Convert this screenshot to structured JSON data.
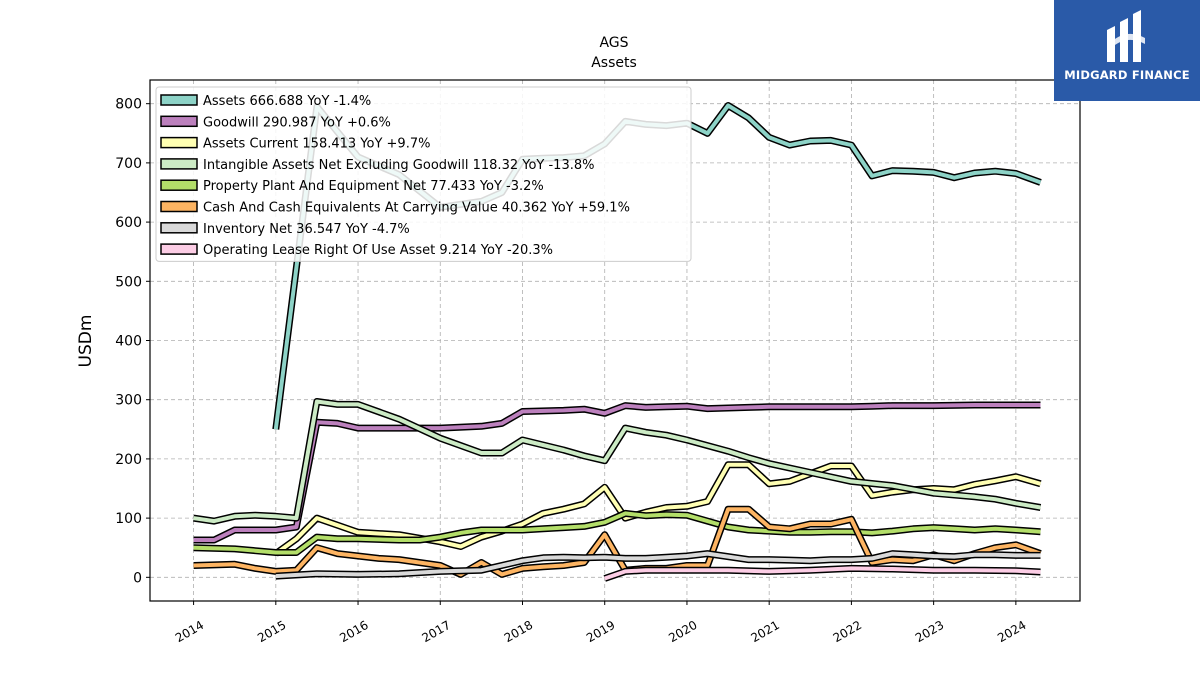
{
  "chart_data": {
    "type": "line",
    "title": "AGS",
    "subtitle": "Assets",
    "ylabel": "USDm",
    "xlabel": "",
    "xlim": [
      2013.47,
      2024.78
    ],
    "ylim": [
      -40,
      840
    ],
    "grid": true,
    "legend_position": "top-left",
    "x_ticks": [
      2014,
      2015,
      2016,
      2017,
      2018,
      2019,
      2020,
      2021,
      2022,
      2023,
      2024
    ],
    "y_ticks": [
      0,
      100,
      200,
      300,
      400,
      500,
      600,
      700,
      800
    ],
    "series": [
      {
        "name": "Assets",
        "legend_label": "Assets  666.688 YoY -1.4%",
        "color": "#8dd3c7",
        "points": [
          [
            2015.0,
            250
          ],
          [
            2015.5,
            795
          ],
          [
            2016.0,
            710
          ],
          [
            2016.5,
            680
          ],
          [
            2017.0,
            625
          ],
          [
            2017.5,
            635
          ],
          [
            2017.75,
            650
          ],
          [
            2018.0,
            706
          ],
          [
            2018.25,
            708
          ],
          [
            2018.5,
            709
          ],
          [
            2018.75,
            712
          ],
          [
            2019.0,
            732
          ],
          [
            2019.25,
            770
          ],
          [
            2019.5,
            765
          ],
          [
            2019.75,
            763
          ],
          [
            2020.0,
            767
          ],
          [
            2020.25,
            750
          ],
          [
            2020.5,
            797
          ],
          [
            2020.75,
            776
          ],
          [
            2021.0,
            743
          ],
          [
            2021.25,
            730
          ],
          [
            2021.5,
            737
          ],
          [
            2021.75,
            738
          ],
          [
            2022.0,
            730
          ],
          [
            2022.25,
            678
          ],
          [
            2022.5,
            687
          ],
          [
            2022.75,
            686
          ],
          [
            2023.0,
            684
          ],
          [
            2023.25,
            675
          ],
          [
            2023.5,
            683
          ],
          [
            2023.75,
            686
          ],
          [
            2024.0,
            682
          ],
          [
            2024.3,
            667
          ]
        ]
      },
      {
        "name": "Goodwill",
        "legend_label": "Goodwill  290.987 YoY +0.6%",
        "color": "#bc80bd",
        "points": [
          [
            2014.0,
            63
          ],
          [
            2014.25,
            63
          ],
          [
            2014.5,
            80
          ],
          [
            2014.75,
            80
          ],
          [
            2015.0,
            80
          ],
          [
            2015.25,
            85
          ],
          [
            2015.5,
            262
          ],
          [
            2015.75,
            260
          ],
          [
            2016.0,
            252
          ],
          [
            2016.5,
            252
          ],
          [
            2017.0,
            252
          ],
          [
            2017.5,
            255
          ],
          [
            2017.75,
            260
          ],
          [
            2018.0,
            280
          ],
          [
            2018.5,
            282
          ],
          [
            2018.75,
            284
          ],
          [
            2019.0,
            277
          ],
          [
            2019.25,
            290
          ],
          [
            2019.5,
            287
          ],
          [
            2019.75,
            288
          ],
          [
            2020.0,
            289
          ],
          [
            2020.25,
            285
          ],
          [
            2020.75,
            287
          ],
          [
            2021.0,
            288
          ],
          [
            2021.5,
            288
          ],
          [
            2022.0,
            288
          ],
          [
            2022.25,
            289
          ],
          [
            2022.5,
            290
          ],
          [
            2023.0,
            290
          ],
          [
            2023.5,
            291
          ],
          [
            2024.0,
            291
          ],
          [
            2024.3,
            291
          ]
        ]
      },
      {
        "name": "Assets Current",
        "legend_label": "Assets Current  158.413 YoY +9.7%",
        "color": "#ffffb3",
        "points": [
          [
            2015.0,
            40
          ],
          [
            2015.25,
            65
          ],
          [
            2015.5,
            100
          ],
          [
            2015.75,
            88
          ],
          [
            2016.0,
            76
          ],
          [
            2016.5,
            72
          ],
          [
            2017.0,
            60
          ],
          [
            2017.25,
            52
          ],
          [
            2017.5,
            68
          ],
          [
            2017.75,
            78
          ],
          [
            2018.0,
            90
          ],
          [
            2018.25,
            108
          ],
          [
            2018.5,
            115
          ],
          [
            2018.75,
            124
          ],
          [
            2019.0,
            152
          ],
          [
            2019.25,
            100
          ],
          [
            2019.5,
            110
          ],
          [
            2019.75,
            118
          ],
          [
            2020.0,
            120
          ],
          [
            2020.25,
            128
          ],
          [
            2020.5,
            190
          ],
          [
            2020.75,
            190
          ],
          [
            2021.0,
            158
          ],
          [
            2021.25,
            162
          ],
          [
            2021.5,
            175
          ],
          [
            2021.75,
            188
          ],
          [
            2022.0,
            188
          ],
          [
            2022.25,
            138
          ],
          [
            2022.5,
            144
          ],
          [
            2022.75,
            148
          ],
          [
            2023.0,
            150
          ],
          [
            2023.25,
            148
          ],
          [
            2023.5,
            157
          ],
          [
            2023.75,
            163
          ],
          [
            2024.0,
            170
          ],
          [
            2024.3,
            158
          ]
        ]
      },
      {
        "name": "Intangible Assets Net Excluding Goodwill",
        "legend_label": "Intangible Assets Net Excluding Goodwill  118.32 YoY -13.8%",
        "color": "#ccebc5",
        "points": [
          [
            2014.0,
            100
          ],
          [
            2014.25,
            95
          ],
          [
            2014.5,
            103
          ],
          [
            2014.75,
            105
          ],
          [
            2015.0,
            103
          ],
          [
            2015.25,
            100
          ],
          [
            2015.5,
            297
          ],
          [
            2015.75,
            292
          ],
          [
            2016.0,
            292
          ],
          [
            2016.5,
            267
          ],
          [
            2017.0,
            235
          ],
          [
            2017.5,
            210
          ],
          [
            2017.75,
            210
          ],
          [
            2018.0,
            232
          ],
          [
            2018.5,
            215
          ],
          [
            2018.75,
            205
          ],
          [
            2019.0,
            197
          ],
          [
            2019.25,
            252
          ],
          [
            2019.5,
            245
          ],
          [
            2019.75,
            240
          ],
          [
            2020.0,
            232
          ],
          [
            2020.5,
            213
          ],
          [
            2020.75,
            202
          ],
          [
            2021.0,
            192
          ],
          [
            2021.5,
            177
          ],
          [
            2022.0,
            162
          ],
          [
            2022.5,
            155
          ],
          [
            2023.0,
            142
          ],
          [
            2023.5,
            136
          ],
          [
            2023.75,
            132
          ],
          [
            2024.0,
            125
          ],
          [
            2024.3,
            118
          ]
        ]
      },
      {
        "name": "Property Plant And Equipment Net",
        "legend_label": "Property Plant And Equipment Net  77.433 YoY -3.2%",
        "color": "#b3de69",
        "points": [
          [
            2014.0,
            50
          ],
          [
            2014.5,
            48
          ],
          [
            2014.75,
            45
          ],
          [
            2015.0,
            42
          ],
          [
            2015.25,
            42
          ],
          [
            2015.5,
            68
          ],
          [
            2015.75,
            65
          ],
          [
            2016.0,
            65
          ],
          [
            2016.5,
            63
          ],
          [
            2016.75,
            63
          ],
          [
            2017.0,
            68
          ],
          [
            2017.25,
            75
          ],
          [
            2017.5,
            80
          ],
          [
            2017.75,
            80
          ],
          [
            2018.0,
            80
          ],
          [
            2018.25,
            82
          ],
          [
            2018.5,
            84
          ],
          [
            2018.75,
            86
          ],
          [
            2019.0,
            93
          ],
          [
            2019.25,
            108
          ],
          [
            2019.5,
            104
          ],
          [
            2019.75,
            106
          ],
          [
            2020.0,
            105
          ],
          [
            2020.25,
            95
          ],
          [
            2020.5,
            85
          ],
          [
            2020.75,
            80
          ],
          [
            2021.0,
            78
          ],
          [
            2021.25,
            76
          ],
          [
            2021.5,
            76
          ],
          [
            2021.75,
            77
          ],
          [
            2022.0,
            77
          ],
          [
            2022.25,
            75
          ],
          [
            2022.5,
            78
          ],
          [
            2022.75,
            82
          ],
          [
            2023.0,
            84
          ],
          [
            2023.25,
            82
          ],
          [
            2023.5,
            80
          ],
          [
            2023.75,
            82
          ],
          [
            2024.0,
            80
          ],
          [
            2024.3,
            77
          ]
        ]
      },
      {
        "name": "Cash And Cash Equivalents At Carrying Value",
        "legend_label": "Cash And Cash Equivalents At Carrying Value  40.362 YoY +59.1%",
        "color": "#fdb462",
        "points": [
          [
            2014.0,
            20
          ],
          [
            2014.5,
            22
          ],
          [
            2014.75,
            15
          ],
          [
            2015.0,
            10
          ],
          [
            2015.25,
            12
          ],
          [
            2015.5,
            50
          ],
          [
            2015.75,
            40
          ],
          [
            2016.0,
            36
          ],
          [
            2016.25,
            32
          ],
          [
            2016.5,
            30
          ],
          [
            2017.0,
            20
          ],
          [
            2017.25,
            5
          ],
          [
            2017.5,
            25
          ],
          [
            2017.75,
            5
          ],
          [
            2018.0,
            15
          ],
          [
            2018.25,
            18
          ],
          [
            2018.5,
            20
          ],
          [
            2018.75,
            25
          ],
          [
            2019.0,
            72
          ],
          [
            2019.25,
            12
          ],
          [
            2019.5,
            15
          ],
          [
            2019.75,
            15
          ],
          [
            2020.0,
            20
          ],
          [
            2020.25,
            20
          ],
          [
            2020.5,
            115
          ],
          [
            2020.75,
            115
          ],
          [
            2021.0,
            85
          ],
          [
            2021.25,
            82
          ],
          [
            2021.5,
            90
          ],
          [
            2021.75,
            90
          ],
          [
            2022.0,
            98
          ],
          [
            2022.25,
            25
          ],
          [
            2022.5,
            30
          ],
          [
            2022.75,
            28
          ],
          [
            2023.0,
            38
          ],
          [
            2023.25,
            28
          ],
          [
            2023.5,
            40
          ],
          [
            2023.75,
            50
          ],
          [
            2024.0,
            55
          ],
          [
            2024.3,
            40
          ]
        ]
      },
      {
        "name": "Inventory Net",
        "legend_label": "Inventory Net  36.547 YoY -4.7%",
        "color": "#d9d9d9",
        "points": [
          [
            2015.0,
            2
          ],
          [
            2015.5,
            6
          ],
          [
            2016.0,
            5
          ],
          [
            2016.5,
            6
          ],
          [
            2017.0,
            10
          ],
          [
            2017.5,
            12
          ],
          [
            2018.0,
            28
          ],
          [
            2018.25,
            33
          ],
          [
            2018.5,
            34
          ],
          [
            2018.75,
            33
          ],
          [
            2019.0,
            34
          ],
          [
            2019.25,
            32
          ],
          [
            2019.5,
            32
          ],
          [
            2019.75,
            34
          ],
          [
            2020.0,
            36
          ],
          [
            2020.25,
            40
          ],
          [
            2020.5,
            35
          ],
          [
            2020.75,
            30
          ],
          [
            2021.0,
            30
          ],
          [
            2021.25,
            29
          ],
          [
            2021.5,
            28
          ],
          [
            2021.75,
            30
          ],
          [
            2022.0,
            30
          ],
          [
            2022.25,
            32
          ],
          [
            2022.5,
            40
          ],
          [
            2022.75,
            38
          ],
          [
            2023.0,
            36
          ],
          [
            2023.25,
            35
          ],
          [
            2023.5,
            38
          ],
          [
            2023.75,
            38
          ],
          [
            2024.0,
            37
          ],
          [
            2024.3,
            37
          ]
        ]
      },
      {
        "name": "Operating Lease Right Of Use Asset",
        "legend_label": "Operating Lease Right Of Use Asset  9.214 YoY -20.3%",
        "color": "#fccde5",
        "points": [
          [
            2019.0,
            -2
          ],
          [
            2019.25,
            10
          ],
          [
            2019.5,
            12
          ],
          [
            2020.0,
            12
          ],
          [
            2020.5,
            12
          ],
          [
            2021.0,
            10
          ],
          [
            2021.5,
            12
          ],
          [
            2022.0,
            15
          ],
          [
            2022.5,
            14
          ],
          [
            2023.0,
            12
          ],
          [
            2023.5,
            12
          ],
          [
            2024.0,
            11
          ],
          [
            2024.3,
            9
          ]
        ]
      }
    ]
  },
  "logo": {
    "text": "MIDGARD FINANCE",
    "background": "#2a5aa8"
  }
}
